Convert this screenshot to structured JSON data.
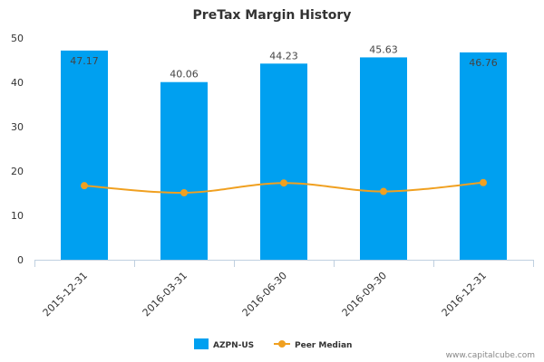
{
  "chart_data": {
    "type": "bar",
    "title": "PreTax Margin History",
    "categories": [
      "2015-12-31",
      "2016-03-31",
      "2016-06-30",
      "2016-09-30",
      "2016-12-31"
    ],
    "series": [
      {
        "name": "AZPN-US",
        "type": "bar",
        "color": "#00a0f0",
        "values": [
          47.17,
          40.06,
          44.23,
          45.63,
          46.76
        ],
        "labels": [
          "47.17",
          "40.06",
          "44.23",
          "45.63",
          "46.76"
        ]
      },
      {
        "name": "Peer Median",
        "type": "line",
        "color": "#f0a020",
        "values": [
          16.7,
          15.1,
          17.3,
          15.4,
          17.4
        ]
      }
    ],
    "ylim": [
      0,
      50
    ],
    "yticks": [
      "0",
      "10",
      "20",
      "30",
      "40",
      "50"
    ],
    "xlabel": "",
    "ylabel": "",
    "grid": false,
    "legend": "bottom-center"
  },
  "credit": "www.capitalcube.com"
}
